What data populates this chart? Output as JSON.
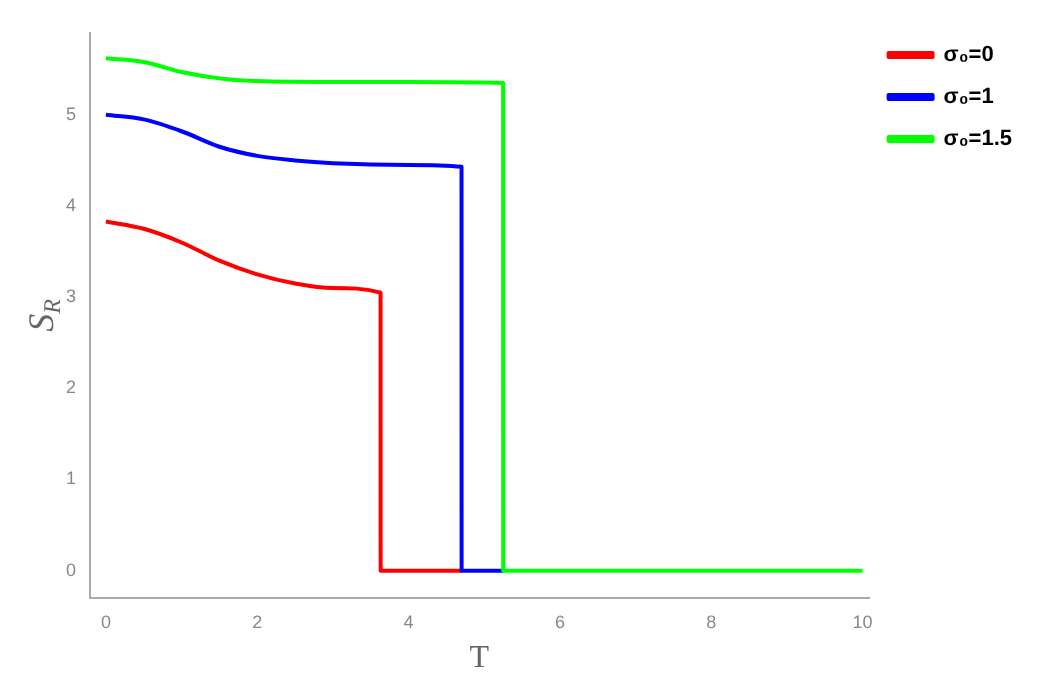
{
  "chart_data": {
    "type": "line",
    "xlabel": "T",
    "ylabel": "S$_{R}$",
    "xlim": [
      -0.21,
      10.08
    ],
    "ylim": [
      -0.3,
      5.9
    ],
    "xticks": [
      0,
      2,
      4,
      6,
      8,
      10
    ],
    "yticks": [
      0,
      1,
      2,
      3,
      4,
      5
    ],
    "grid": false,
    "legend": "top right",
    "marker": "none",
    "line_style": "solid",
    "series": [
      {
        "name": "σ₀=0",
        "color": "#ff0000",
        "x": [
          0,
          0.5,
          1,
          1.5,
          2,
          2.5,
          3,
          3.63,
          3.631,
          4,
          4.7
        ],
        "values": [
          3.83,
          3.75,
          3.6,
          3.4,
          3.25,
          3.15,
          3.1,
          3.05,
          0,
          0,
          0
        ]
      },
      {
        "name": "σ₀=1",
        "color": "#0000ff",
        "x": [
          0,
          0.5,
          1,
          1.5,
          2,
          2.5,
          3,
          4,
          4.7,
          4.701,
          5.25
        ],
        "values": [
          5.0,
          4.95,
          4.82,
          4.65,
          4.55,
          4.5,
          4.47,
          4.45,
          4.43,
          0,
          0
        ]
      },
      {
        "name": "σ₀=1.5",
        "color": "#00ff00",
        "x": [
          0,
          0.5,
          1,
          1.5,
          2,
          3,
          4,
          5.25,
          5.251,
          6,
          8,
          10
        ],
        "values": [
          5.62,
          5.58,
          5.47,
          5.4,
          5.37,
          5.36,
          5.36,
          5.35,
          0,
          0,
          0,
          0
        ]
      }
    ]
  }
}
